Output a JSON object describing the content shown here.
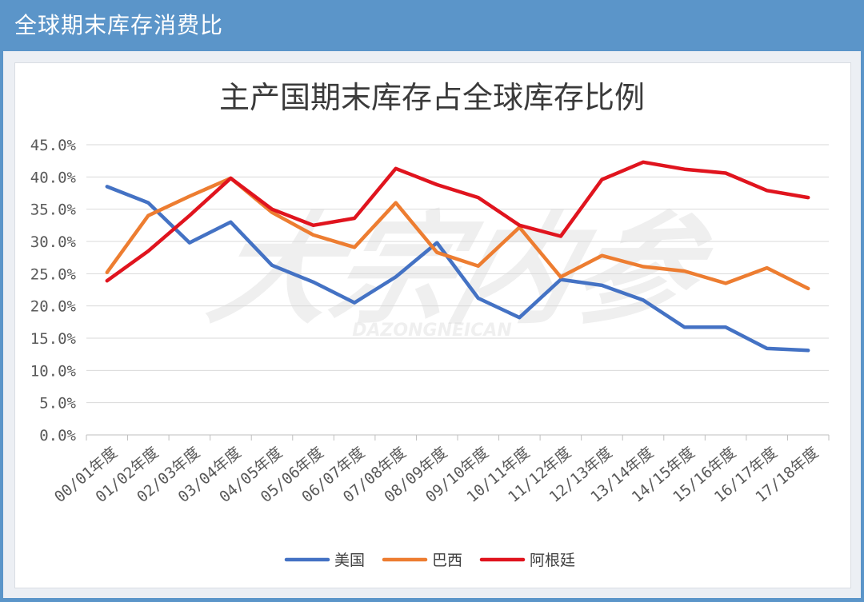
{
  "header": {
    "title": "全球期末库存消费比"
  },
  "watermark": {
    "main": "大宗内参",
    "sub": "DAZONGNEICAN"
  },
  "colors": {
    "header_bg": "#5b95c9",
    "grid": "#d9d9d9",
    "usa": "#4472c4",
    "brazil": "#ed7d31",
    "argentina": "#e0141e"
  },
  "chart_data": {
    "type": "line",
    "title": "主产国期末库存占全球库存比例",
    "categories": [
      "00/01年度",
      "01/02年度",
      "02/03年度",
      "03/04年度",
      "04/05年度",
      "05/06年度",
      "06/07年度",
      "07/08年度",
      "08/09年度",
      "09/10年度",
      "10/11年度",
      "11/12年度",
      "12/13年度",
      "13/14年度",
      "14/15年度",
      "15/16年度",
      "16/17年度",
      "17/18年度"
    ],
    "ylim": [
      0,
      45
    ],
    "yticks": [
      "0.0%",
      "5.0%",
      "10.0%",
      "15.0%",
      "20.0%",
      "25.0%",
      "30.0%",
      "35.0%",
      "40.0%",
      "45.0%"
    ],
    "grid": true,
    "legend_position": "bottom",
    "series": [
      {
        "name": "美国",
        "color": "#4472c4",
        "values": [
          38.5,
          36.0,
          29.8,
          33.0,
          26.3,
          23.7,
          20.5,
          24.5,
          29.8,
          21.2,
          18.2,
          24.1,
          23.2,
          20.9,
          16.7,
          16.7,
          13.4,
          13.1
        ]
      },
      {
        "name": "巴西",
        "color": "#ed7d31",
        "values": [
          25.2,
          34.0,
          37.0,
          39.8,
          34.5,
          31.0,
          29.1,
          36.0,
          28.3,
          26.2,
          32.2,
          24.5,
          27.8,
          26.1,
          25.4,
          23.5,
          25.9,
          22.7
        ]
      },
      {
        "name": "阿根廷",
        "color": "#e0141e",
        "values": [
          23.9,
          28.5,
          34.0,
          39.8,
          35.0,
          32.5,
          33.6,
          41.3,
          38.8,
          36.8,
          32.5,
          30.8,
          39.6,
          42.3,
          41.2,
          40.6,
          37.9,
          36.8
        ]
      }
    ]
  }
}
